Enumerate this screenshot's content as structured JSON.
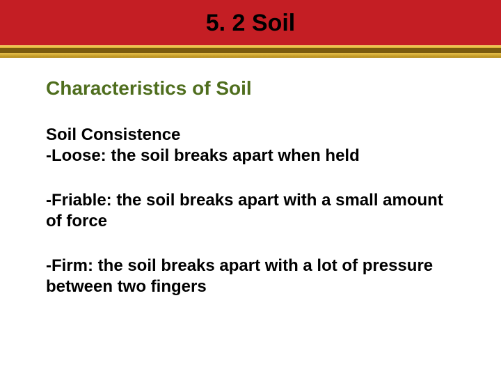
{
  "header": {
    "title": "5. 2  Soil",
    "band_color": "#c41e24",
    "title_color": "#000000",
    "title_fontsize": 34
  },
  "divider": {
    "colors": [
      "#f7d96b",
      "#d9a92e",
      "#7a5a0e",
      "#e6c04a",
      "#b38a1a"
    ]
  },
  "content": {
    "section_title": "Characteristics of Soil",
    "section_title_color": "#4f6e1e",
    "section_title_fontsize": 28,
    "subtitle": "Soil Consistence",
    "items": [
      "-Loose: the soil breaks apart when held",
      "-Friable: the soil breaks apart with a small amount of force",
      "-Firm: the soil breaks apart with a lot of pressure between two fingers"
    ],
    "body_fontsize": 24,
    "body_color": "#000000"
  },
  "background_color": "#ffffff"
}
